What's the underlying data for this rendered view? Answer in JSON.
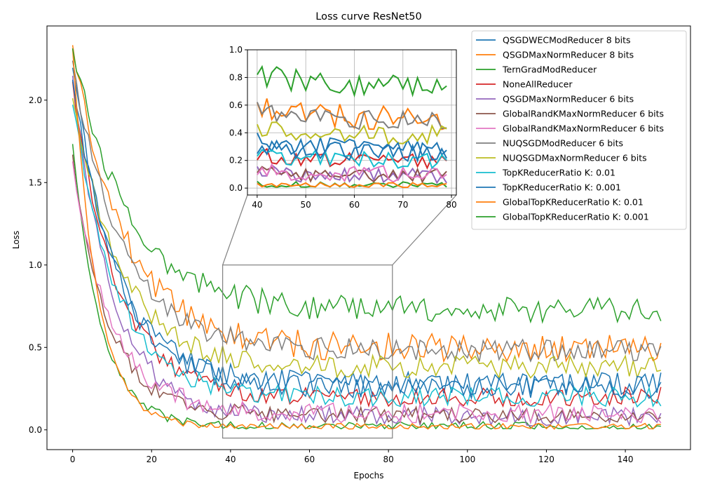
{
  "chart_data": {
    "type": "line",
    "title": "Loss curve ResNet50",
    "xlabel": "Epochs",
    "ylabel": "Loss",
    "xlim": [
      -6.5,
      156.5
    ],
    "ylim": [
      -0.12,
      2.45
    ],
    "x_ticks": [
      "0",
      "20",
      "40",
      "60",
      "80",
      "100",
      "120",
      "140"
    ],
    "x_tick_values": [
      0,
      20,
      40,
      60,
      80,
      100,
      120,
      140
    ],
    "y_ticks": [
      "0.0",
      "0.5",
      "1.0",
      "1.5",
      "2.0"
    ],
    "y_tick_values": [
      0,
      0.5,
      1.0,
      1.5,
      2.0
    ],
    "grid": false,
    "legend_position": "top-right",
    "epochs": [
      0,
      149
    ],
    "series": [
      {
        "name": "QSGDWECModReducer 8 bits",
        "color": "#1f77b4",
        "start": 2.2,
        "end": 0.28,
        "tau": 11,
        "noise": 0.07,
        "seed": 1
      },
      {
        "name": "QSGDMaxNormReducer 8 bits",
        "color": "#ff7f0e",
        "start": 2.33,
        "end": 0.5,
        "tau": 13,
        "noise": 0.09,
        "seed": 2
      },
      {
        "name": "TernGradModReducer",
        "color": "#2ca02c",
        "start": 1.73,
        "end": 0.02,
        "tau": 7,
        "noise": 0.03,
        "seed": 3
      },
      {
        "name": "NoneAllReducer",
        "color": "#d62728",
        "start": 2.1,
        "end": 0.2,
        "tau": 11,
        "noise": 0.06,
        "seed": 4
      },
      {
        "name": "QSGDMaxNormReducer 6 bits",
        "color": "#9467bd",
        "start": 2.13,
        "end": 0.08,
        "tau": 10,
        "noise": 0.06,
        "seed": 5
      },
      {
        "name": "GlobalRandKMaxNormReducer 6 bits",
        "color": "#8c564b",
        "start": 1.65,
        "end": 0.09,
        "tau": 9,
        "noise": 0.05,
        "seed": 6
      },
      {
        "name": "GlobalRandKMaxNormReducer 6 bits",
        "color": "#e377c2",
        "start": 1.6,
        "end": 0.1,
        "tau": 10,
        "noise": 0.06,
        "seed": 7
      },
      {
        "name": "NUQSGDModReducer 6 bits",
        "color": "#7f7f7f",
        "start": 2.2,
        "end": 0.48,
        "tau": 13,
        "noise": 0.07,
        "seed": 8
      },
      {
        "name": "NUQSGDMaxNormReducer 6 bits",
        "color": "#bcbd22",
        "start": 2.05,
        "end": 0.38,
        "tau": 12,
        "noise": 0.07,
        "seed": 9
      },
      {
        "name": "TopKReducerRatio K: 0.01",
        "color": "#17becf",
        "start": 2.0,
        "end": 0.2,
        "tau": 11,
        "noise": 0.06,
        "seed": 10
      },
      {
        "name": "TopKReducerRatio K: 0.001",
        "color": "#1f77b4",
        "start": 2.15,
        "end": 0.26,
        "tau": 11,
        "noise": 0.07,
        "seed": 11
      },
      {
        "name": "GlobalTopKReducerRatio K: 0.01",
        "color": "#ff7f0e",
        "start": 2.32,
        "end": 0.02,
        "tau": 6,
        "noise": 0.02,
        "seed": 12
      },
      {
        "name": "GlobalTopKReducerRatio K: 0.001",
        "color": "#2ca02c",
        "start": 2.33,
        "end": 0.73,
        "tau": 14,
        "noise": 0.08,
        "seed": 13
      }
    ],
    "inset": {
      "xlim": [
        38,
        81
      ],
      "ylim": [
        -0.05,
        1.0
      ],
      "x_ticks": [
        "40",
        "50",
        "60",
        "70",
        "80"
      ],
      "x_tick_values": [
        40,
        50,
        60,
        70,
        80
      ],
      "y_ticks": [
        "0.0",
        "0.2",
        "0.4",
        "0.6",
        "0.8",
        "1.0"
      ],
      "y_tick_values": [
        0,
        0.2,
        0.4,
        0.6,
        0.8,
        1.0
      ],
      "grid": true
    }
  }
}
